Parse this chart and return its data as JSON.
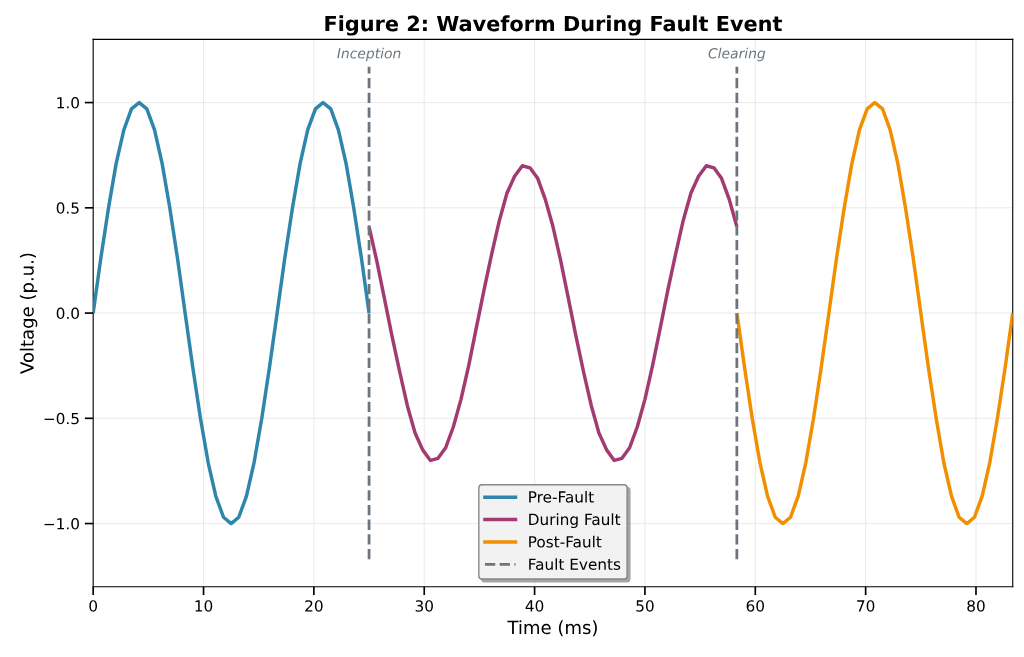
{
  "chart_data": {
    "type": "line",
    "title": "Figure 2: Waveform During Fault Event",
    "xlabel": "Time (ms)",
    "ylabel": "Voltage (p.u.)",
    "xlim": [
      0,
      83.33
    ],
    "xticks": [
      0,
      10,
      20,
      30,
      40,
      50,
      60,
      70,
      80
    ],
    "ylim": [
      -1.3,
      1.3
    ],
    "yticks": [
      {
        "value": -1,
        "label": "−1.0"
      },
      {
        "value": -0.5,
        "label": "−0.5"
      },
      {
        "value": 0,
        "label": "0.0"
      },
      {
        "value": 0.5,
        "label": "0.5"
      },
      {
        "value": 1,
        "label": "1.0"
      }
    ],
    "grid": true,
    "legend": "bottom",
    "marker": "none",
    "annotations": [
      {
        "text": "Inception",
        "x": 25,
        "y": 1.17
      },
      {
        "text": "Clearing",
        "x": 58.33,
        "y": 1.17
      }
    ],
    "series": [
      {
        "name": "Pre-Fault",
        "color": "#2e86ab",
        "line_style": "solid",
        "x": [
          0,
          0.69,
          1.39,
          2.08,
          2.78,
          3.47,
          4.17,
          4.86,
          5.56,
          6.25,
          6.94,
          7.64,
          8.33,
          9.03,
          9.72,
          10.42,
          11.11,
          11.81,
          12.5,
          13.19,
          13.89,
          14.58,
          15.28,
          15.97,
          16.67,
          17.36,
          18.06,
          18.75,
          19.44,
          20.14,
          20.83,
          21.53,
          22.22,
          22.92,
          23.61,
          24.31,
          25.0
        ],
        "values": [
          0,
          0.26,
          0.5,
          0.71,
          0.87,
          0.97,
          1,
          0.97,
          0.87,
          0.71,
          0.5,
          0.26,
          0,
          -0.26,
          -0.5,
          -0.71,
          -0.87,
          -0.97,
          -1,
          -0.97,
          -0.87,
          -0.71,
          -0.5,
          -0.26,
          0,
          0.26,
          0.5,
          0.71,
          0.87,
          0.97,
          1,
          0.97,
          0.87,
          0.71,
          0.5,
          0.26,
          0
        ]
      },
      {
        "name": "During Fault",
        "color": "#a23b72",
        "line_style": "solid",
        "x": [
          25.0,
          25.69,
          26.39,
          27.08,
          27.78,
          28.47,
          29.17,
          29.86,
          30.56,
          31.25,
          31.94,
          32.64,
          33.33,
          34.03,
          34.72,
          35.42,
          36.11,
          36.81,
          37.5,
          38.19,
          38.89,
          39.58,
          40.28,
          40.97,
          41.67,
          42.36,
          43.06,
          43.75,
          44.44,
          45.14,
          45.83,
          46.53,
          47.22,
          47.92,
          48.61,
          49.31,
          50.0,
          50.69,
          51.39,
          52.08,
          52.78,
          53.47,
          54.17,
          54.86,
          55.56,
          56.25,
          56.94,
          57.64,
          58.33
        ],
        "values": [
          0.41,
          0.25,
          0.07,
          -0.11,
          -0.28,
          -0.44,
          -0.57,
          -0.65,
          -0.7,
          -0.69,
          -0.64,
          -0.54,
          -0.41,
          -0.25,
          -0.07,
          0.11,
          0.28,
          0.44,
          0.57,
          0.65,
          0.7,
          0.69,
          0.64,
          0.54,
          0.41,
          0.25,
          0.07,
          -0.11,
          -0.28,
          -0.44,
          -0.57,
          -0.65,
          -0.7,
          -0.69,
          -0.64,
          -0.54,
          -0.41,
          -0.25,
          -0.07,
          0.11,
          0.28,
          0.44,
          0.57,
          0.65,
          0.7,
          0.69,
          0.64,
          0.54,
          0.41
        ]
      },
      {
        "name": "Post-Fault",
        "color": "#f18f01",
        "line_style": "solid",
        "x": [
          58.33,
          59.03,
          59.72,
          60.42,
          61.11,
          61.81,
          62.5,
          63.19,
          63.89,
          64.58,
          65.28,
          65.97,
          66.67,
          67.36,
          68.06,
          68.75,
          69.44,
          70.14,
          70.83,
          71.53,
          72.22,
          72.92,
          73.61,
          74.31,
          75.0,
          75.69,
          76.39,
          77.08,
          77.78,
          78.47,
          79.17,
          79.86,
          80.56,
          81.25,
          81.94,
          82.64,
          83.33
        ],
        "values": [
          0,
          -0.26,
          -0.5,
          -0.71,
          -0.87,
          -0.97,
          -1,
          -0.97,
          -0.87,
          -0.71,
          -0.5,
          -0.26,
          0,
          0.26,
          0.5,
          0.71,
          0.87,
          0.97,
          1,
          0.97,
          0.87,
          0.71,
          0.5,
          0.26,
          0,
          -0.26,
          -0.5,
          -0.71,
          -0.87,
          -0.97,
          -1,
          -0.97,
          -0.87,
          -0.71,
          -0.5,
          -0.26,
          0
        ]
      },
      {
        "name": "Fault Events",
        "color": "#6c757d",
        "line_style": "dashed",
        "x": [
          25,
          25,
          null,
          58.33,
          58.33
        ],
        "values": [
          -1.17,
          1.17,
          null,
          -1.17,
          1.17
        ]
      }
    ]
  }
}
